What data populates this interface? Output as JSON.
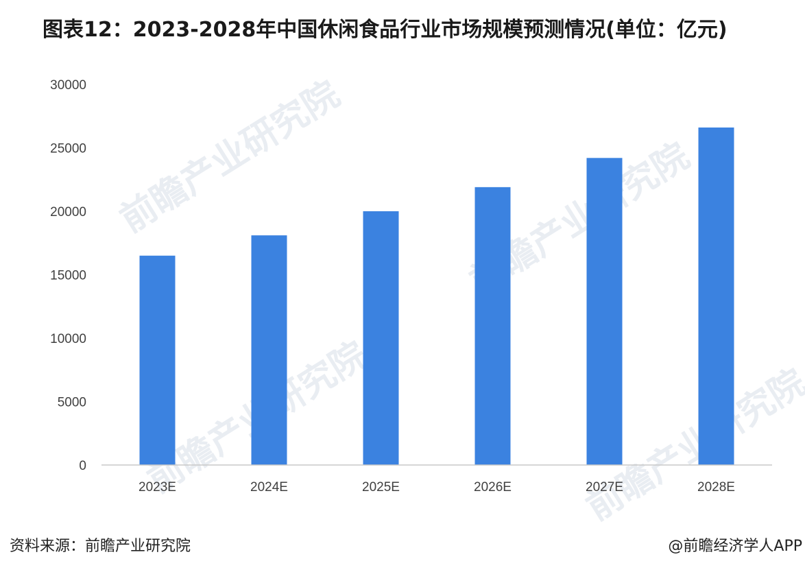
{
  "page": {
    "title": "图表12：2023-2028年中国休闲食品行业市场规模预测情况(单位：亿元)",
    "source": "资料来源：前瞻产业研究院",
    "credit": "@前瞻经济学人APP",
    "watermark": "前瞻产业研究院"
  },
  "colors": {
    "bar": "#3b82e0",
    "axis_line": "#c8c8c8",
    "tick_text": "#404040",
    "watermark": "#e9edf2"
  },
  "chart_data": {
    "type": "bar",
    "title": "图表12：2023-2028年中国休闲食品行业市场规模预测情况(单位：亿元)",
    "categories": [
      "2023E",
      "2024E",
      "2025E",
      "2026E",
      "2027E",
      "2028E"
    ],
    "values": [
      16500,
      18100,
      20000,
      21900,
      24200,
      26600
    ],
    "ylim": [
      0,
      30000
    ],
    "yticks": [
      0,
      5000,
      10000,
      15000,
      20000,
      25000,
      30000
    ],
    "xlabel": "",
    "ylabel": "",
    "grid": false,
    "legend": "none"
  }
}
